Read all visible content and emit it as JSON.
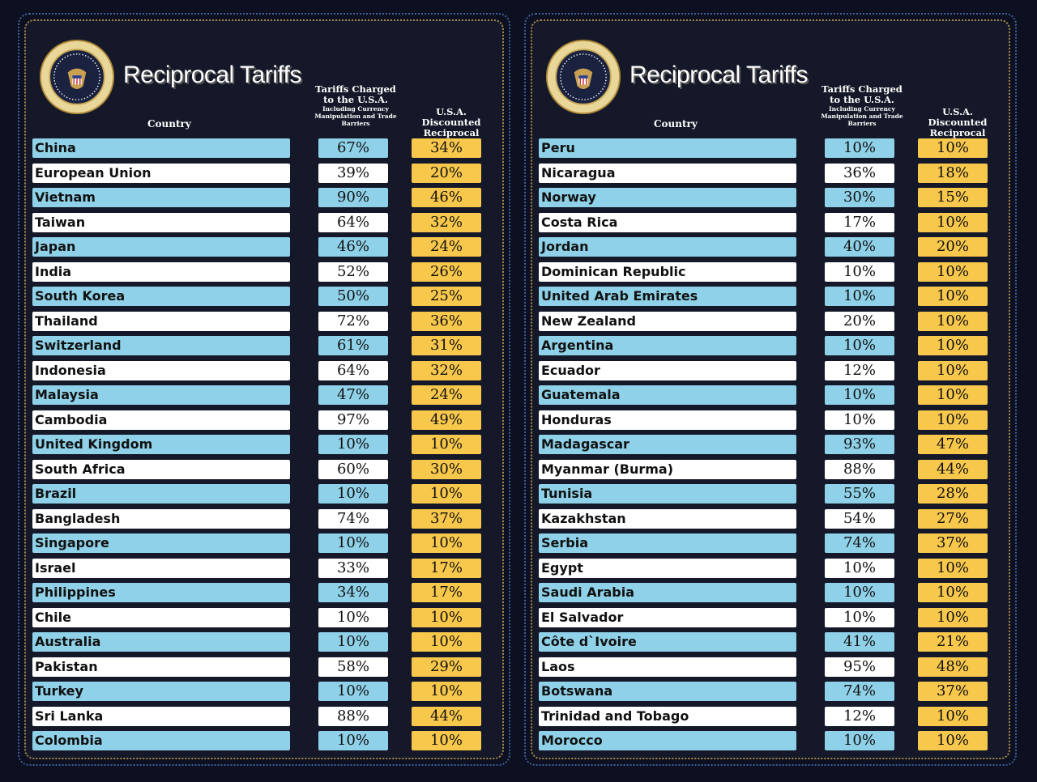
{
  "colors": {
    "blue_row": "#8fd1e8",
    "white_row": "#ffffff",
    "reciprocal": "#f8c84c",
    "background": "#141828"
  },
  "seal_text": "SEAL OF THE PRESIDENT OF THE UNITED STATES",
  "panels": [
    {
      "title": "Reciprocal Tariffs",
      "col_country": "Country",
      "col_charged": "Tariffs Charged to the U.S.A.",
      "col_charged_note": "Including Currency Manipulation and Trade Barriers",
      "col_reciprocal": "U.S.A. Discounted Reciprocal Tariffs"
    },
    {
      "title": "Reciprocal Tariffs",
      "col_country": "Country",
      "col_charged": "Tariffs Charged to the U.S.A.",
      "col_charged_note": "Including Currency Manipulation and Trade Barriers",
      "col_reciprocal": "U.S.A. Discounted Reciprocal Tariffs"
    }
  ],
  "chart_data": [
    {
      "type": "table",
      "columns": [
        "Country",
        "Tariffs Charged to the U.S.A.",
        "U.S.A. Discounted Reciprocal Tariffs"
      ],
      "rows": [
        [
          "China",
          "67%",
          "34%"
        ],
        [
          "European Union",
          "39%",
          "20%"
        ],
        [
          "Vietnam",
          "90%",
          "46%"
        ],
        [
          "Taiwan",
          "64%",
          "32%"
        ],
        [
          "Japan",
          "46%",
          "24%"
        ],
        [
          "India",
          "52%",
          "26%"
        ],
        [
          "South Korea",
          "50%",
          "25%"
        ],
        [
          "Thailand",
          "72%",
          "36%"
        ],
        [
          "Switzerland",
          "61%",
          "31%"
        ],
        [
          "Indonesia",
          "64%",
          "32%"
        ],
        [
          "Malaysia",
          "47%",
          "24%"
        ],
        [
          "Cambodia",
          "97%",
          "49%"
        ],
        [
          "United Kingdom",
          "10%",
          "10%"
        ],
        [
          "South Africa",
          "60%",
          "30%"
        ],
        [
          "Brazil",
          "10%",
          "10%"
        ],
        [
          "Bangladesh",
          "74%",
          "37%"
        ],
        [
          "Singapore",
          "10%",
          "10%"
        ],
        [
          "Israel",
          "33%",
          "17%"
        ],
        [
          "Philippines",
          "34%",
          "17%"
        ],
        [
          "Chile",
          "10%",
          "10%"
        ],
        [
          "Australia",
          "10%",
          "10%"
        ],
        [
          "Pakistan",
          "58%",
          "29%"
        ],
        [
          "Turkey",
          "10%",
          "10%"
        ],
        [
          "Sri Lanka",
          "88%",
          "44%"
        ],
        [
          "Colombia",
          "10%",
          "10%"
        ]
      ]
    },
    {
      "type": "table",
      "columns": [
        "Country",
        "Tariffs Charged to the U.S.A.",
        "U.S.A. Discounted Reciprocal Tariffs"
      ],
      "rows": [
        [
          "Peru",
          "10%",
          "10%"
        ],
        [
          "Nicaragua",
          "36%",
          "18%"
        ],
        [
          "Norway",
          "30%",
          "15%"
        ],
        [
          "Costa Rica",
          "17%",
          "10%"
        ],
        [
          "Jordan",
          "40%",
          "20%"
        ],
        [
          "Dominican Republic",
          "10%",
          "10%"
        ],
        [
          "United Arab Emirates",
          "10%",
          "10%"
        ],
        [
          "New Zealand",
          "20%",
          "10%"
        ],
        [
          "Argentina",
          "10%",
          "10%"
        ],
        [
          "Ecuador",
          "12%",
          "10%"
        ],
        [
          "Guatemala",
          "10%",
          "10%"
        ],
        [
          "Honduras",
          "10%",
          "10%"
        ],
        [
          "Madagascar",
          "93%",
          "47%"
        ],
        [
          "Myanmar (Burma)",
          "88%",
          "44%"
        ],
        [
          "Tunisia",
          "55%",
          "28%"
        ],
        [
          "Kazakhstan",
          "54%",
          "27%"
        ],
        [
          "Serbia",
          "74%",
          "37%"
        ],
        [
          "Egypt",
          "10%",
          "10%"
        ],
        [
          "Saudi Arabia",
          "10%",
          "10%"
        ],
        [
          "El Salvador",
          "10%",
          "10%"
        ],
        [
          "Côte d`Ivoire",
          "41%",
          "21%"
        ],
        [
          "Laos",
          "95%",
          "48%"
        ],
        [
          "Botswana",
          "74%",
          "37%"
        ],
        [
          "Trinidad and Tobago",
          "12%",
          "10%"
        ],
        [
          "Morocco",
          "10%",
          "10%"
        ]
      ]
    }
  ]
}
